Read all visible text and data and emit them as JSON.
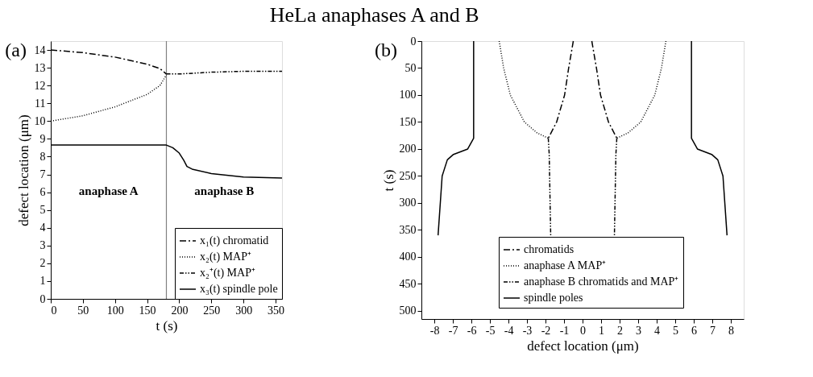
{
  "chart_data": [
    {
      "type": "line",
      "title": "HeLa anaphases A and B",
      "xlabel": "t (s)",
      "ylabel": "defect location (μm)",
      "xlim": [
        0,
        360
      ],
      "ylim": [
        0,
        14.5
      ],
      "xticks": [
        0,
        50,
        100,
        150,
        200,
        250,
        300,
        350
      ],
      "yticks": [
        0,
        1,
        2,
        3,
        4,
        5,
        6,
        7,
        8,
        9,
        10,
        11,
        12,
        13,
        14
      ],
      "legend": "bottom right",
      "grid": false,
      "series": [
        {
          "name": "x₁(t) chromatid",
          "color": "#000000",
          "line_style": "dashdot",
          "x": [
            0,
            50,
            100,
            150,
            170,
            180
          ],
          "values": [
            14.0,
            13.85,
            13.6,
            13.2,
            12.95,
            12.65
          ]
        },
        {
          "name": "x₂(t) MAP⁺",
          "color": "#000000",
          "line_style": "dotted",
          "x": [
            0,
            50,
            100,
            150,
            170,
            180
          ],
          "values": [
            10.0,
            10.3,
            10.8,
            11.5,
            12.0,
            12.6
          ]
        },
        {
          "name": "x₂⁺(t) MAP⁺",
          "color": "#000000",
          "line_style": "dashdotdot",
          "x": [
            180,
            200,
            250,
            300,
            360
          ],
          "values": [
            12.65,
            12.65,
            12.75,
            12.8,
            12.8
          ]
        },
        {
          "name": "x₃(t) spindle pole",
          "color": "#000000",
          "line_style": "solid",
          "x": [
            0,
            180,
            190,
            200,
            207,
            212,
            220,
            250,
            300,
            360
          ],
          "values": [
            8.65,
            8.65,
            8.5,
            8.2,
            7.8,
            7.45,
            7.3,
            7.05,
            6.85,
            6.8
          ]
        }
      ],
      "ref_lines": [
        {
          "axis": "x",
          "value": 180,
          "color": "#808080"
        }
      ],
      "annotations": [
        "(a)",
        "anaphase A",
        "anaphase B"
      ]
    },
    {
      "type": "line",
      "xlabel": "defect location (μm)",
      "ylabel": "t (s)",
      "xlim": [
        -8.7,
        8.7
      ],
      "ylim": [
        515,
        0
      ],
      "xticks": [
        -8,
        -7,
        -6,
        -5,
        -4,
        -3,
        -2,
        -1,
        0,
        1,
        2,
        3,
        4,
        5,
        6,
        7,
        8
      ],
      "yticks": [
        0,
        50,
        100,
        150,
        200,
        250,
        300,
        350,
        400,
        450,
        500
      ],
      "legend": "bottom",
      "grid": false,
      "series": [
        {
          "name": "chromatids",
          "color": "#000000",
          "line_style": "dashdot",
          "x": [
            -0.5,
            -0.75,
            -0.97,
            -1.4,
            -1.85,
            null,
            0.5,
            0.75,
            0.97,
            1.4,
            1.85
          ],
          "values": [
            0,
            50,
            100,
            150,
            180,
            null,
            0,
            50,
            100,
            150,
            180
          ]
        },
        {
          "name": "anaphase A MAP⁺",
          "color": "#000000",
          "line_style": "dotted",
          "x": [
            -4.5,
            -4.26,
            -3.9,
            -3.14,
            -2.46,
            -1.85,
            null,
            4.5,
            4.26,
            3.9,
            3.14,
            2.46,
            1.85
          ],
          "values": [
            0,
            50,
            100,
            150,
            170,
            180,
            null,
            0,
            50,
            100,
            150,
            170,
            180
          ]
        },
        {
          "name": "anaphase B chromatids and MAP⁺",
          "color": "#000000",
          "line_style": "dashdotdot",
          "x": [
            -1.85,
            -1.8,
            -1.72,
            null,
            1.85,
            1.8,
            1.72
          ],
          "values": [
            180,
            210,
            360,
            null,
            180,
            210,
            360
          ]
        },
        {
          "name": "spindle poles",
          "color": "#000000",
          "line_style": "solid",
          "x": [
            -5.88,
            -5.88,
            -6.2,
            -6.97,
            -7.3,
            -7.58,
            -7.68,
            -7.8,
            null,
            5.88,
            5.88,
            6.2,
            6.97,
            7.3,
            7.58,
            7.68,
            7.8
          ],
          "values": [
            0,
            180,
            200,
            210,
            220,
            250,
            300,
            360,
            null,
            0,
            180,
            200,
            210,
            220,
            250,
            300,
            360
          ]
        }
      ],
      "annotations": [
        "(b)"
      ]
    }
  ]
}
